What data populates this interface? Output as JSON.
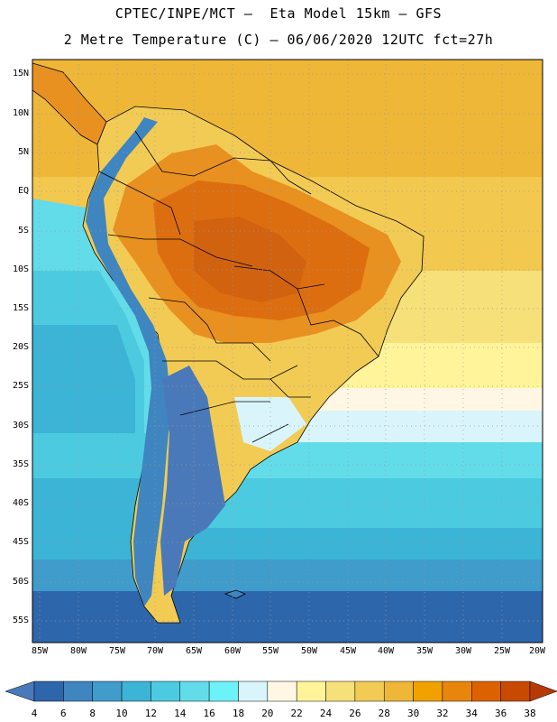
{
  "header": {
    "line1": "CPTEC/INPE/MCT –  Eta Model 15km – GFS",
    "line2": "2 Metre Temperature (C) – 06/06/2020 12UTC fct=27h"
  },
  "axes": {
    "lat_labels": [
      "15N",
      "10N",
      "5N",
      "EQ",
      "5S",
      "10S",
      "15S",
      "20S",
      "25S",
      "30S",
      "35S",
      "40S",
      "45S",
      "50S",
      "55S"
    ],
    "lon_labels": [
      "85W",
      "80W",
      "75W",
      "70W",
      "65W",
      "60W",
      "55W",
      "50W",
      "45W",
      "40W",
      "35W",
      "30W",
      "25W",
      "20W"
    ]
  },
  "colorbar": {
    "labels": [
      "4",
      "6",
      "8",
      "10",
      "12",
      "14",
      "16",
      "18",
      "20",
      "22",
      "24",
      "26",
      "28",
      "30",
      "32",
      "34",
      "36",
      "38"
    ],
    "colors": [
      "#4a79b9",
      "#2e66ac",
      "#3f85c0",
      "#3f9ccb",
      "#3bb4d6",
      "#4ccbe0",
      "#63dcea",
      "#6cf2f8",
      "#d9f5fb",
      "#fff7e3",
      "#fff49a",
      "#f5e07a",
      "#f2cb55",
      "#eeb738",
      "#f0a100",
      "#e8860b",
      "#dc6200",
      "#c84a00",
      "#b73a04"
    ]
  },
  "map": {
    "ocean_pacific_north": "#6cd8e6",
    "ocean_atlantic_tropical": "#f2c84f",
    "land_hot": "#dc6e10",
    "land_warm": "#e89020",
    "land_mild": "#f2c84f",
    "south_cold": "#2e66ac",
    "boundary_color": "#000000"
  }
}
